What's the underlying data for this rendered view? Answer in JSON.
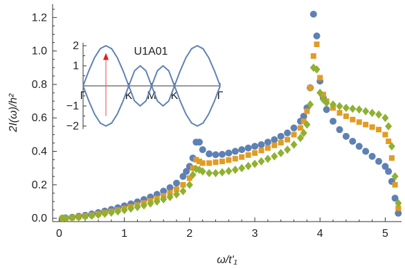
{
  "chart_data": [
    {
      "type": "scatter",
      "title": "",
      "xlabel": "ω/t'₁",
      "ylabel": "2I(ω)/h²",
      "xlim": [
        -0.1,
        5.25
      ],
      "ylim": [
        -0.02,
        1.28
      ],
      "x_ticks": [
        0,
        1,
        2,
        3,
        4,
        5
      ],
      "y_ticks": [
        0.0,
        0.2,
        0.4,
        0.6,
        0.8,
        1.0,
        1.2
      ],
      "x_tick_labels": [
        "0",
        "1",
        "2",
        "3",
        "4",
        "5"
      ],
      "y_tick_labels": [
        "0.0",
        "0.2",
        "0.4",
        "0.6",
        "0.8",
        "1.0",
        "1.2"
      ],
      "grid": false,
      "legend": "none",
      "series": [
        {
          "marker": "circle",
          "color": "#5e81b5",
          "points": [
            [
              0.05,
              0.0
            ],
            [
              0.1,
              0.002
            ],
            [
              0.2,
              0.006
            ],
            [
              0.3,
              0.012
            ],
            [
              0.4,
              0.018
            ],
            [
              0.5,
              0.026
            ],
            [
              0.6,
              0.034
            ],
            [
              0.7,
              0.043
            ],
            [
              0.8,
              0.053
            ],
            [
              0.9,
              0.063
            ],
            [
              1.0,
              0.074
            ],
            [
              1.1,
              0.086
            ],
            [
              1.2,
              0.098
            ],
            [
              1.3,
              0.112
            ],
            [
              1.4,
              0.127
            ],
            [
              1.5,
              0.143
            ],
            [
              1.6,
              0.162
            ],
            [
              1.7,
              0.183
            ],
            [
              1.8,
              0.21
            ],
            [
              1.9,
              0.25
            ],
            [
              1.95,
              0.28
            ],
            [
              2.0,
              0.31
            ],
            [
              2.05,
              0.36
            ],
            [
              2.1,
              0.455
            ],
            [
              2.15,
              0.455
            ],
            [
              2.2,
              0.41
            ],
            [
              2.3,
              0.385
            ],
            [
              2.4,
              0.38
            ],
            [
              2.5,
              0.382
            ],
            [
              2.6,
              0.39
            ],
            [
              2.7,
              0.4
            ],
            [
              2.8,
              0.41
            ],
            [
              2.9,
              0.42
            ],
            [
              3.0,
              0.43
            ],
            [
              3.1,
              0.44
            ],
            [
              3.2,
              0.455
            ],
            [
              3.3,
              0.47
            ],
            [
              3.4,
              0.49
            ],
            [
              3.5,
              0.51
            ],
            [
              3.6,
              0.54
            ],
            [
              3.7,
              0.58
            ],
            [
              3.75,
              0.61
            ],
            [
              3.8,
              0.66
            ],
            [
              3.85,
              0.78
            ],
            [
              3.9,
              1.22
            ],
            [
              3.95,
              1.09
            ],
            [
              4.0,
              0.82
            ],
            [
              4.05,
              0.72
            ],
            [
              4.1,
              0.65
            ],
            [
              4.2,
              0.58
            ],
            [
              4.3,
              0.53
            ],
            [
              4.4,
              0.49
            ],
            [
              4.5,
              0.46
            ],
            [
              4.6,
              0.43
            ],
            [
              4.7,
              0.4
            ],
            [
              4.8,
              0.37
            ],
            [
              4.9,
              0.34
            ],
            [
              5.0,
              0.31
            ],
            [
              5.05,
              0.28
            ],
            [
              5.1,
              0.22
            ],
            [
              5.15,
              0.12
            ],
            [
              5.2,
              0.03
            ]
          ]
        },
        {
          "marker": "square",
          "color": "#e19c24",
          "points": [
            [
              0.05,
              0.0
            ],
            [
              0.1,
              0.001
            ],
            [
              0.2,
              0.004
            ],
            [
              0.3,
              0.008
            ],
            [
              0.4,
              0.013
            ],
            [
              0.5,
              0.019
            ],
            [
              0.6,
              0.026
            ],
            [
              0.7,
              0.033
            ],
            [
              0.8,
              0.041
            ],
            [
              0.9,
              0.049
            ],
            [
              1.0,
              0.058
            ],
            [
              1.1,
              0.068
            ],
            [
              1.2,
              0.079
            ],
            [
              1.3,
              0.091
            ],
            [
              1.4,
              0.104
            ],
            [
              1.5,
              0.118
            ],
            [
              1.6,
              0.134
            ],
            [
              1.7,
              0.152
            ],
            [
              1.8,
              0.173
            ],
            [
              1.9,
              0.2
            ],
            [
              2.0,
              0.24
            ],
            [
              2.05,
              0.3
            ],
            [
              2.1,
              0.35
            ],
            [
              2.15,
              0.34
            ],
            [
              2.2,
              0.33
            ],
            [
              2.3,
              0.33
            ],
            [
              2.4,
              0.335
            ],
            [
              2.5,
              0.34
            ],
            [
              2.6,
              0.348
            ],
            [
              2.7,
              0.356
            ],
            [
              2.8,
              0.366
            ],
            [
              2.9,
              0.378
            ],
            [
              3.0,
              0.39
            ],
            [
              3.1,
              0.405
            ],
            [
              3.2,
              0.42
            ],
            [
              3.3,
              0.436
            ],
            [
              3.4,
              0.452
            ],
            [
              3.5,
              0.47
            ],
            [
              3.6,
              0.5
            ],
            [
              3.7,
              0.54
            ],
            [
              3.75,
              0.58
            ],
            [
              3.8,
              0.64
            ],
            [
              3.85,
              0.78
            ],
            [
              3.9,
              0.97
            ],
            [
              3.95,
              1.04
            ],
            [
              4.0,
              0.84
            ],
            [
              4.05,
              0.74
            ],
            [
              4.1,
              0.7
            ],
            [
              4.2,
              0.66
            ],
            [
              4.3,
              0.63
            ],
            [
              4.4,
              0.61
            ],
            [
              4.5,
              0.59
            ],
            [
              4.6,
              0.575
            ],
            [
              4.7,
              0.56
            ],
            [
              4.8,
              0.545
            ],
            [
              4.9,
              0.53
            ],
            [
              5.0,
              0.5
            ],
            [
              5.05,
              0.46
            ],
            [
              5.1,
              0.36
            ],
            [
              5.15,
              0.2
            ],
            [
              5.2,
              0.06
            ]
          ]
        },
        {
          "marker": "diamond",
          "color": "#8fb131",
          "points": [
            [
              0.05,
              0.0
            ],
            [
              0.1,
              0.001
            ],
            [
              0.2,
              0.003
            ],
            [
              0.3,
              0.006
            ],
            [
              0.4,
              0.01
            ],
            [
              0.5,
              0.015
            ],
            [
              0.6,
              0.021
            ],
            [
              0.7,
              0.027
            ],
            [
              0.8,
              0.034
            ],
            [
              0.9,
              0.041
            ],
            [
              1.0,
              0.049
            ],
            [
              1.1,
              0.058
            ],
            [
              1.2,
              0.067
            ],
            [
              1.3,
              0.077
            ],
            [
              1.4,
              0.088
            ],
            [
              1.5,
              0.1
            ],
            [
              1.6,
              0.113
            ],
            [
              1.7,
              0.127
            ],
            [
              1.8,
              0.143
            ],
            [
              1.9,
              0.162
            ],
            [
              2.0,
              0.2
            ],
            [
              2.05,
              0.26
            ],
            [
              2.1,
              0.295
            ],
            [
              2.15,
              0.29
            ],
            [
              2.2,
              0.28
            ],
            [
              2.3,
              0.27
            ],
            [
              2.4,
              0.27
            ],
            [
              2.5,
              0.275
            ],
            [
              2.6,
              0.282
            ],
            [
              2.7,
              0.29
            ],
            [
              2.8,
              0.3
            ],
            [
              2.9,
              0.312
            ],
            [
              3.0,
              0.325
            ],
            [
              3.1,
              0.34
            ],
            [
              3.2,
              0.355
            ],
            [
              3.3,
              0.37
            ],
            [
              3.4,
              0.39
            ],
            [
              3.5,
              0.41
            ],
            [
              3.6,
              0.44
            ],
            [
              3.7,
              0.48
            ],
            [
              3.75,
              0.51
            ],
            [
              3.8,
              0.56
            ],
            [
              3.85,
              0.68
            ],
            [
              3.9,
              0.9
            ],
            [
              3.95,
              0.89
            ],
            [
              4.0,
              0.75
            ],
            [
              4.05,
              0.71
            ],
            [
              4.1,
              0.69
            ],
            [
              4.2,
              0.68
            ],
            [
              4.3,
              0.67
            ],
            [
              4.4,
              0.66
            ],
            [
              4.5,
              0.655
            ],
            [
              4.6,
              0.65
            ],
            [
              4.7,
              0.64
            ],
            [
              4.8,
              0.63
            ],
            [
              4.9,
              0.62
            ],
            [
              5.0,
              0.6
            ],
            [
              5.05,
              0.55
            ],
            [
              5.1,
              0.43
            ],
            [
              5.15,
              0.25
            ],
            [
              5.2,
              0.09
            ]
          ]
        }
      ]
    },
    {
      "type": "line",
      "title": "U1A01",
      "xlabel": "",
      "ylabel": "",
      "xlim": [
        0,
        6
      ],
      "ylim": [
        -2.4,
        2.4
      ],
      "x_tick_labels": [
        "Γ",
        "K",
        "M",
        "K",
        "Γ"
      ],
      "x_tick_positions": [
        0,
        2,
        3,
        4,
        6
      ],
      "y_tick_labels": [
        "2",
        "1",
        "",
        "−1",
        "−2"
      ],
      "y_tick_values": [
        2,
        1,
        0,
        -1,
        -2
      ],
      "legend": "none",
      "series": [
        {
          "color": "#5e81b5",
          "points": [
            [
              0,
              0
            ],
            [
              0.25,
              0.75
            ],
            [
              0.5,
              1.4
            ],
            [
              0.75,
              1.85
            ],
            [
              1.0,
              2.0
            ],
            [
              1.25,
              1.85
            ],
            [
              1.5,
              1.4
            ],
            [
              1.75,
              0.75
            ],
            [
              2.0,
              0
            ],
            [
              2.25,
              0.75
            ],
            [
              2.5,
              1.0
            ],
            [
              2.75,
              0.75
            ],
            [
              3.0,
              0
            ],
            [
              3.25,
              0.75
            ],
            [
              3.5,
              1.0
            ],
            [
              3.75,
              0.75
            ],
            [
              4.0,
              0
            ],
            [
              4.25,
              0.75
            ],
            [
              4.5,
              1.4
            ],
            [
              4.75,
              1.85
            ],
            [
              5.0,
              2.0
            ],
            [
              5.25,
              1.85
            ],
            [
              5.5,
              1.4
            ],
            [
              5.75,
              0.75
            ],
            [
              6.0,
              0
            ]
          ]
        },
        {
          "color": "#5e81b5",
          "points": [
            [
              0,
              0
            ],
            [
              0.25,
              -0.75
            ],
            [
              0.5,
              -1.4
            ],
            [
              0.75,
              -1.85
            ],
            [
              1.0,
              -2.0
            ],
            [
              1.25,
              -1.85
            ],
            [
              1.5,
              -1.4
            ],
            [
              1.75,
              -0.75
            ],
            [
              2.0,
              0
            ],
            [
              2.25,
              -0.75
            ],
            [
              2.5,
              -1.0
            ],
            [
              2.75,
              -0.75
            ],
            [
              3.0,
              0
            ],
            [
              3.25,
              -0.75
            ],
            [
              3.5,
              -1.0
            ],
            [
              3.75,
              -0.75
            ],
            [
              4.0,
              0
            ],
            [
              4.25,
              -0.75
            ],
            [
              4.5,
              -1.4
            ],
            [
              4.75,
              -1.85
            ],
            [
              5.0,
              -2.0
            ],
            [
              5.25,
              -1.85
            ],
            [
              5.5,
              -1.4
            ],
            [
              5.75,
              -0.75
            ],
            [
              6.0,
              0
            ]
          ]
        }
      ],
      "annotations": [
        {
          "type": "vertical-line",
          "x": 1.0,
          "y_from": -1.5,
          "y_to": 1.5,
          "color": "#e8676b"
        },
        {
          "type": "arrow",
          "x": 1.0,
          "y_from": -1.5,
          "y_to": 1.5,
          "color": "#e02020"
        }
      ]
    }
  ]
}
